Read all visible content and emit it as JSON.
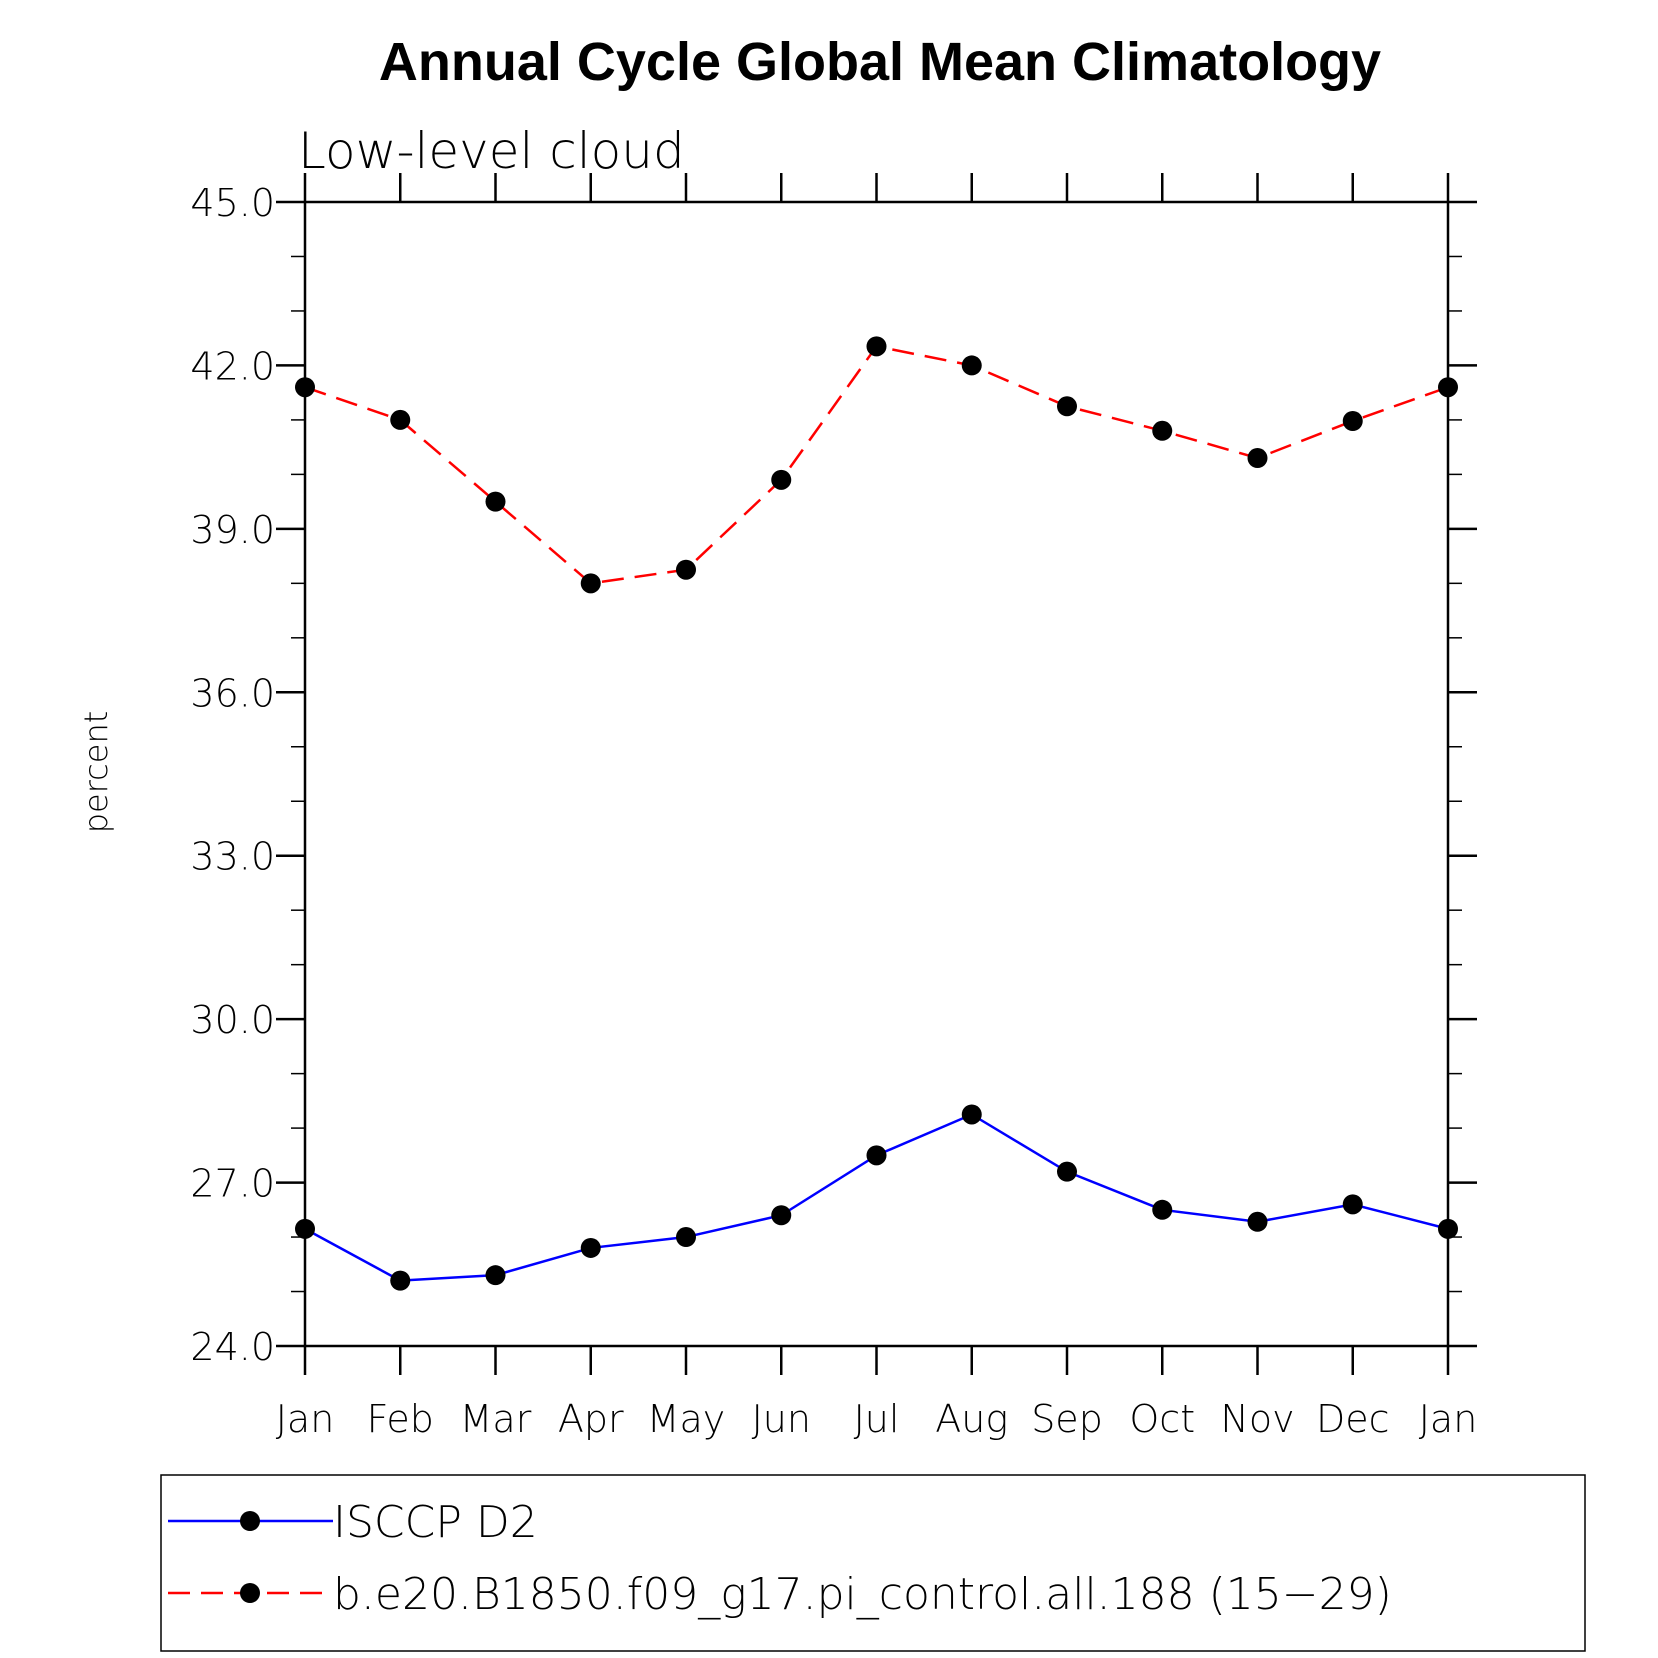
{
  "chart_data": {
    "type": "line",
    "title": "Annual Cycle Global Mean Climatology",
    "subtitle": "Low-level cloud",
    "xlabel": "",
    "ylabel": "percent",
    "categories": [
      "Jan",
      "Feb",
      "Mar",
      "Apr",
      "May",
      "Jun",
      "Jul",
      "Aug",
      "Sep",
      "Oct",
      "Nov",
      "Dec",
      "Jan"
    ],
    "ylim": [
      24.0,
      45.0
    ],
    "yticks": [
      "24.0",
      "27.0",
      "30.0",
      "33.0",
      "36.0",
      "39.0",
      "42.0",
      "45.0"
    ],
    "grid": false,
    "legend_position": "bottom",
    "series": [
      {
        "name": "ISCCP D2",
        "color": "#0000ff",
        "line_style": "solid",
        "marker": "filled-circle",
        "values": [
          26.15,
          25.2,
          25.3,
          25.8,
          26.0,
          26.4,
          27.5,
          28.25,
          27.2,
          26.5,
          26.28,
          26.6,
          26.15
        ]
      },
      {
        "name": "b.e20.B1850.f09_g17.pi_control.all.188 (15−29)",
        "color": "#ff0000",
        "line_style": "dashed",
        "marker": "filled-circle",
        "values": [
          41.6,
          41.0,
          39.5,
          38.0,
          38.25,
          39.9,
          42.35,
          42.0,
          41.25,
          40.8,
          40.3,
          40.98,
          41.6
        ]
      }
    ]
  }
}
